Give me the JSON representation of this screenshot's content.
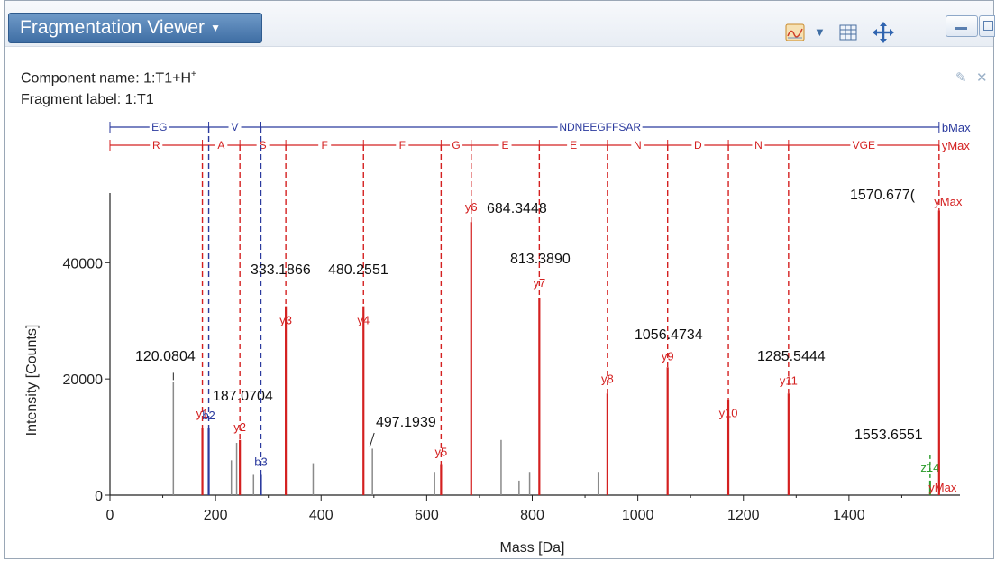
{
  "panel": {
    "title": "Fragmentation Viewer",
    "component_label": "Component name: 1:T1+H",
    "component_sup": "+",
    "fragment_label": "Fragment label: 1:T1",
    "icons": [
      "spectrum-view-icon",
      "dropdown-arrow-icon",
      "table-icon",
      "move-icon",
      "minimize-icon",
      "restore-icon",
      "pin-icon",
      "close-icon"
    ]
  },
  "ladders": {
    "b": {
      "color": "#2b3a9e",
      "segments": [
        {
          "label": "EG",
          "from": 0,
          "to": 187.0704
        },
        {
          "label": "V",
          "from": 187.0704,
          "to": 286.0
        },
        {
          "label": "NDNEEGFFSAR",
          "from": 286.0,
          "to": 1570.677
        }
      ],
      "end_label": "bMax"
    },
    "y": {
      "color": "#d42020",
      "segments": [
        {
          "label": "R",
          "from": 0,
          "to": 175.119
        },
        {
          "label": "A",
          "from": 175.119,
          "to": 246.1561
        },
        {
          "label": "S",
          "from": 246.1561,
          "to": 333.1866
        },
        {
          "label": "F",
          "from": 333.1866,
          "to": 480.2551
        },
        {
          "label": "F",
          "from": 480.2551,
          "to": 627.3
        },
        {
          "label": "G",
          "from": 627.3,
          "to": 684.3448
        },
        {
          "label": "E",
          "from": 684.3448,
          "to": 813.389
        },
        {
          "label": "E",
          "from": 813.389,
          "to": 942.4
        },
        {
          "label": "N",
          "from": 942.4,
          "to": 1056.4734
        },
        {
          "label": "D",
          "from": 1056.4734,
          "to": 1171.5
        },
        {
          "label": "N",
          "from": 1171.5,
          "to": 1285.5444
        },
        {
          "label": "VGE",
          "from": 1285.5444,
          "to": 1570.677
        }
      ],
      "end_label": "yMax"
    }
  },
  "chart_data": {
    "type": "bar",
    "xlabel": "Mass [Da]",
    "ylabel": "Intensity [Counts]",
    "xlim": [
      0,
      1600
    ],
    "ylim": [
      0,
      52000
    ],
    "x_ticks": [
      0,
      200,
      400,
      600,
      800,
      1000,
      1200,
      1400
    ],
    "y_ticks": [
      0,
      20000,
      40000
    ],
    "peaks": [
      {
        "mz": 120.0804,
        "intensity": 19500,
        "ion": "",
        "mass_label": "120.0804",
        "type": "gray"
      },
      {
        "mz": 175.119,
        "intensity": 11500,
        "ion": "y1",
        "mass_label": "",
        "type": "y"
      },
      {
        "mz": 187.0704,
        "intensity": 11500,
        "ion": "b2",
        "mass_label": "187.0704",
        "type": "b"
      },
      {
        "mz": 230.0,
        "intensity": 6000,
        "ion": "",
        "mass_label": "",
        "type": "gray"
      },
      {
        "mz": 240.0,
        "intensity": 9000,
        "ion": "",
        "mass_label": "",
        "type": "gray"
      },
      {
        "mz": 246.1561,
        "intensity": 9500,
        "ion": "y2",
        "mass_label": "",
        "type": "y"
      },
      {
        "mz": 272.0,
        "intensity": 3500,
        "ion": "",
        "mass_label": "",
        "type": "gray"
      },
      {
        "mz": 286.0,
        "intensity": 3500,
        "ion": "b3",
        "mass_label": "",
        "type": "b"
      },
      {
        "mz": 333.1866,
        "intensity": 32500,
        "ion": "y3",
        "mass_label": "333.1866",
        "type": "y"
      },
      {
        "mz": 385.0,
        "intensity": 5500,
        "ion": "",
        "mass_label": "",
        "type": "gray"
      },
      {
        "mz": 480.2551,
        "intensity": 32500,
        "ion": "y4",
        "mass_label": "480.2551",
        "type": "y"
      },
      {
        "mz": 497.1939,
        "intensity": 8000,
        "ion": "",
        "mass_label": "497.1939",
        "type": "gray"
      },
      {
        "mz": 615.0,
        "intensity": 4000,
        "ion": "",
        "mass_label": "",
        "type": "gray"
      },
      {
        "mz": 627.3,
        "intensity": 5200,
        "ion": "y5",
        "mass_label": "",
        "type": "y"
      },
      {
        "mz": 684.3448,
        "intensity": 47000,
        "ion": "y6",
        "mass_label": "684.3448",
        "type": "y"
      },
      {
        "mz": 741.0,
        "intensity": 9500,
        "ion": "",
        "mass_label": "",
        "type": "gray"
      },
      {
        "mz": 775.0,
        "intensity": 2500,
        "ion": "",
        "mass_label": "",
        "type": "gray"
      },
      {
        "mz": 795.0,
        "intensity": 4000,
        "ion": "",
        "mass_label": "",
        "type": "gray"
      },
      {
        "mz": 813.389,
        "intensity": 34000,
        "ion": "y7",
        "mass_label": "813.3890",
        "type": "y"
      },
      {
        "mz": 925.0,
        "intensity": 4000,
        "ion": "",
        "mass_label": "",
        "type": "gray"
      },
      {
        "mz": 942.4,
        "intensity": 17500,
        "ion": "y8",
        "mass_label": "",
        "type": "y"
      },
      {
        "mz": 1056.4734,
        "intensity": 22000,
        "ion": "y9",
        "mass_label": "1056.4734",
        "type": "y"
      },
      {
        "mz": 1171.5,
        "intensity": 16500,
        "ion": "y10",
        "mass_label": "",
        "type": "y"
      },
      {
        "mz": 1285.5444,
        "intensity": 17500,
        "ion": "y11",
        "mass_label": "1285.5444",
        "type": "y"
      },
      {
        "mz": 1553.6551,
        "intensity": 2500,
        "ion": "z14",
        "mass_label": "1553.6551",
        "type": "z"
      },
      {
        "mz": 1570.677,
        "intensity": 49000,
        "ion": "yMax",
        "mass_label": "1570.677(",
        "type": "y"
      }
    ],
    "extra_labels": [
      {
        "text": "yMax",
        "near_mz": 1570.677
      }
    ]
  },
  "colors": {
    "y_ion": "#d42020",
    "b_ion": "#2b3a9e",
    "z_ion": "#2a9a2a",
    "gray_peak": "#8a8a8a",
    "title_bg": "#4f7fb5"
  }
}
